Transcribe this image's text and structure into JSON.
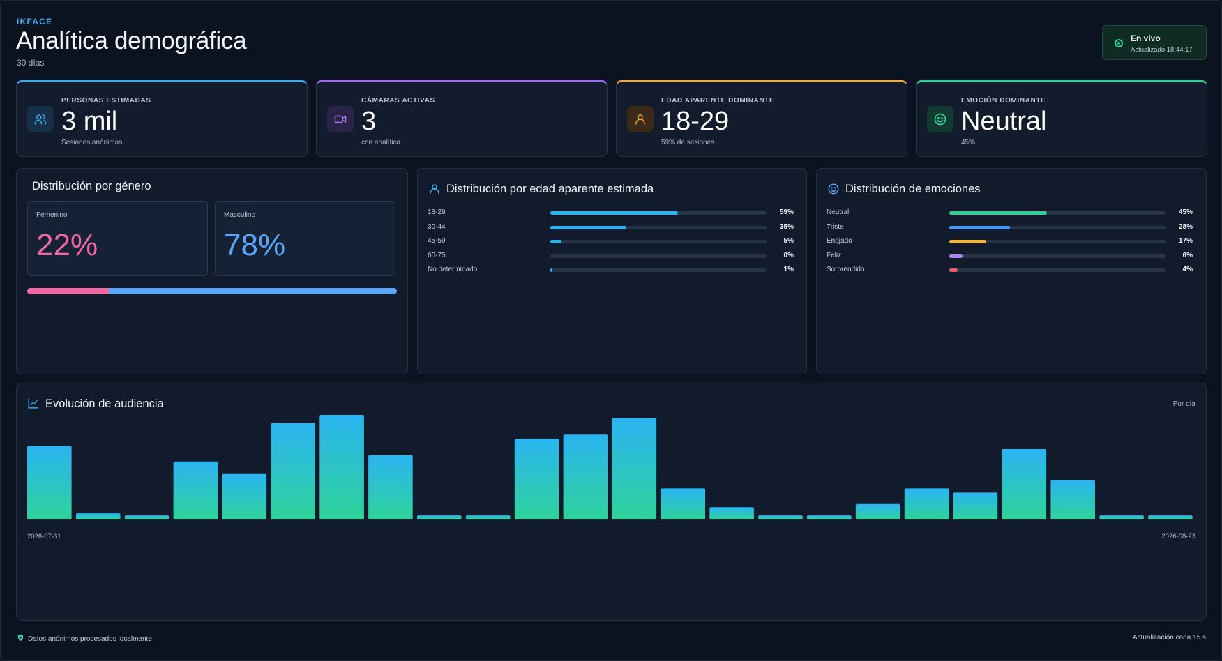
{
  "header": {
    "brand": "IKFACE",
    "title": "Analítica demográfica",
    "period": "30 días"
  },
  "live": {
    "status": "En vivo",
    "updated": "Actualizado 18:44:17",
    "color": "#2fd39a"
  },
  "kpis": [
    {
      "label": "PERSONAS ESTIMADAS",
      "value": "3 mil",
      "sub": "Sesiones anónimas",
      "icon": "users-icon",
      "accent": "#3aa8f0"
    },
    {
      "label": "CÁMARAS ACTIVAS",
      "value": "3",
      "sub": "con analítica",
      "icon": "video-camera-icon",
      "accent": "#9b6cf2"
    },
    {
      "label": "EDAD APARENTE DOMINANTE",
      "value": "18-29",
      "sub": "59% de sesiones",
      "icon": "user-icon",
      "accent": "#f0a93a"
    },
    {
      "label": "EMOCIÓN DOMINANTE",
      "value": "Neutral",
      "sub": "45%",
      "icon": "smile-icon",
      "accent": "#2fd39a"
    }
  ],
  "gender": {
    "title": "Distribución por género",
    "female": {
      "label": "Femenino",
      "value": "22%",
      "fraction": 0.22,
      "color": "#f067a6"
    },
    "male": {
      "label": "Masculino",
      "value": "78%",
      "fraction": 0.78,
      "color": "#58a6f5"
    }
  },
  "age": {
    "title": "Distribución por edad aparente estimada",
    "color": "#2bb4f2",
    "rows": [
      {
        "label": "18-29",
        "pct": "59%",
        "value": 59
      },
      {
        "label": "30-44",
        "pct": "35%",
        "value": 35
      },
      {
        "label": "45-59",
        "pct": "5%",
        "value": 5
      },
      {
        "label": "60-75",
        "pct": "0%",
        "value": 0
      },
      {
        "label": "No determinado",
        "pct": "1%",
        "value": 1
      }
    ]
  },
  "emotions": {
    "title": "Distribución de emociones",
    "rows": [
      {
        "label": "Neutral",
        "pct": "45%",
        "value": 45,
        "color": "#2fcf95"
      },
      {
        "label": "Triste",
        "pct": "28%",
        "value": 28,
        "color": "#4d96f0"
      },
      {
        "label": "Enojado",
        "pct": "17%",
        "value": 17,
        "color": "#f5b43d"
      },
      {
        "label": "Feliz",
        "pct": "6%",
        "value": 6,
        "color": "#b083f2"
      },
      {
        "label": "Sorprendido",
        "pct": "4%",
        "value": 4,
        "color": "#f0566e"
      }
    ]
  },
  "audience": {
    "title": "Evolución de audiencia",
    "period_label": "Por día",
    "x_start": "2026-07-31",
    "x_end": "2026-08-23",
    "chart_data": {
      "type": "bar",
      "values": [
        71,
        6,
        4,
        56,
        44,
        93,
        101,
        62,
        4,
        4,
        78,
        82,
        98,
        30,
        12,
        4,
        4,
        15,
        30,
        26,
        68,
        38,
        4,
        4
      ],
      "ymax": 101,
      "color_top": "#2bb4f2",
      "color_bottom": "#2fd39a"
    }
  },
  "footer": {
    "privacy": "Datos anónimos procesados localmente",
    "refresh": "Actualización cada 15 s"
  }
}
